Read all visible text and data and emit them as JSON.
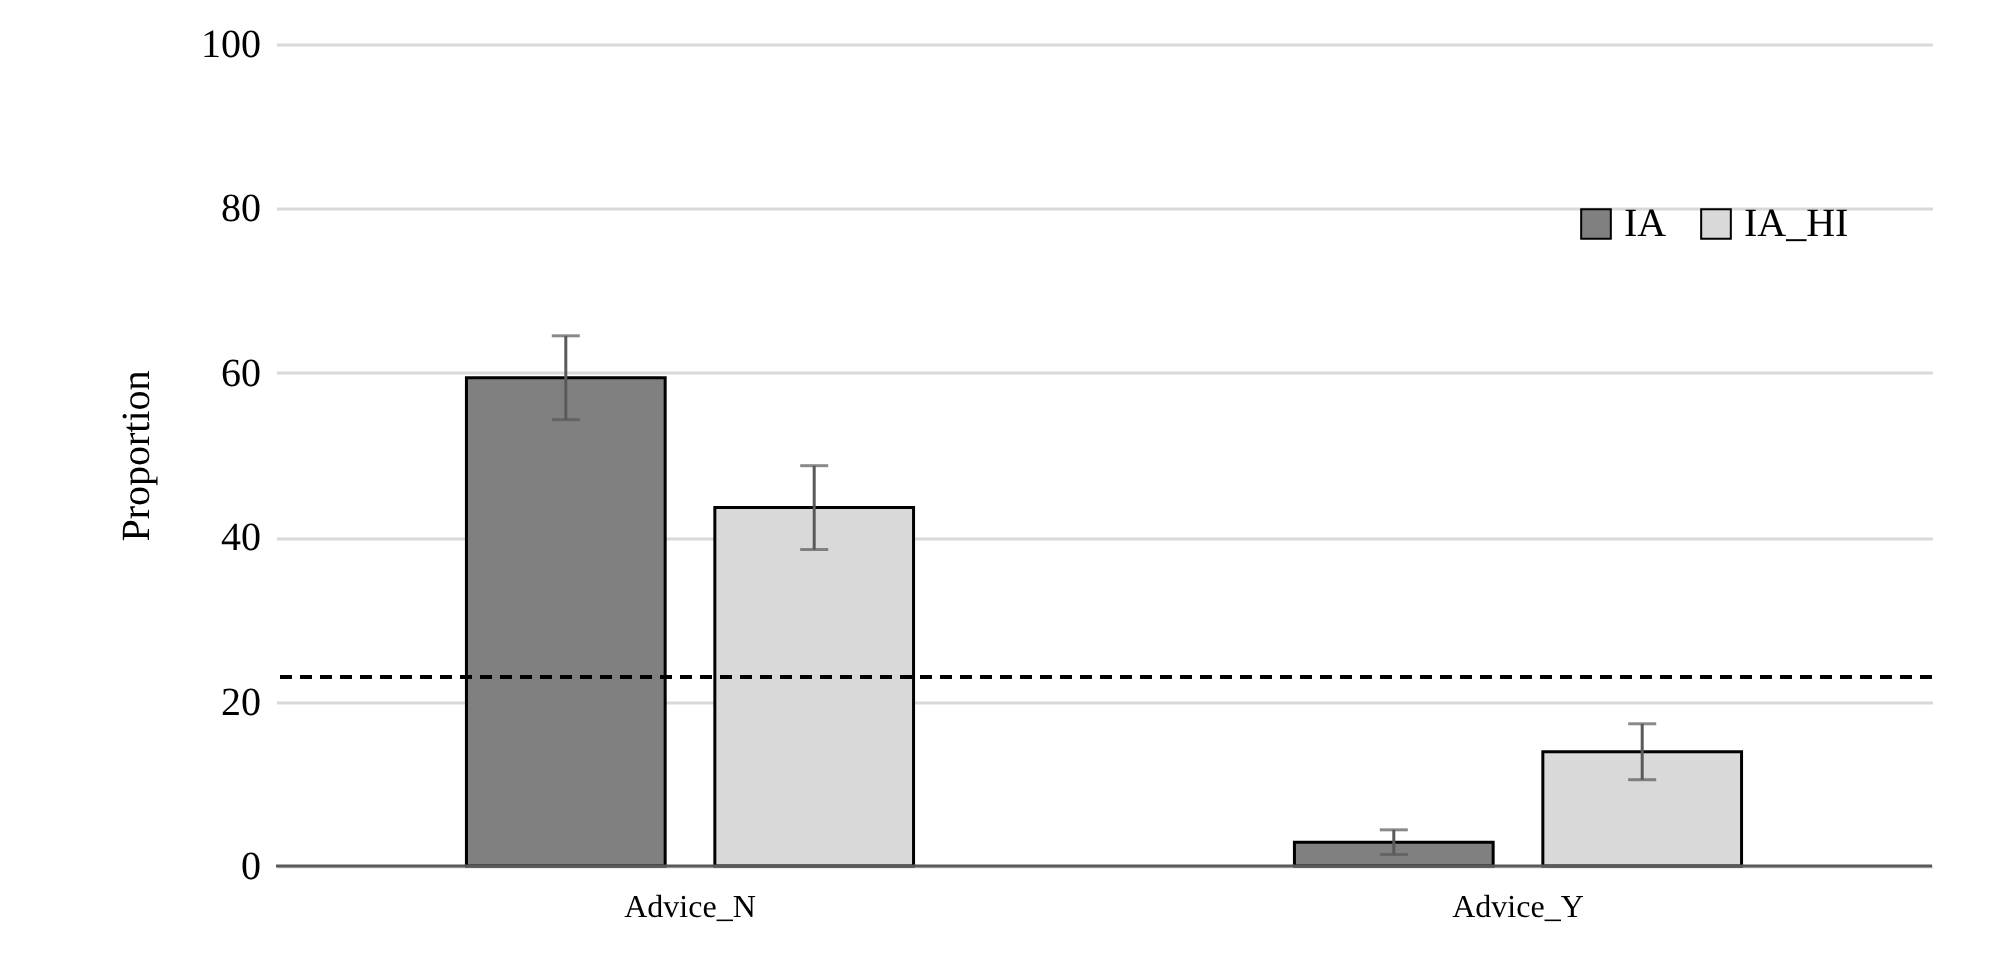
{
  "chart_data": {
    "type": "bar",
    "ylabel": "Proportion",
    "categories": [
      "Advice_N",
      "Advice_Y"
    ],
    "series": [
      {
        "name": "IA",
        "color": "#808080",
        "values": [
          59.4,
          2.9
        ],
        "errors": [
          5.1,
          1.5
        ]
      },
      {
        "name": "IA_HI",
        "color": "#d9d9d9",
        "values": [
          43.6,
          13.9
        ],
        "errors": [
          5.1,
          3.4
        ]
      }
    ],
    "ylim": [
      0,
      100
    ],
    "yticks": [
      0,
      20,
      40,
      60,
      80,
      100
    ],
    "grid": "y",
    "legend": "top right",
    "ref_lines": [
      {
        "axis": "y",
        "value": 23,
        "line_style": "dashed",
        "color": "#000000"
      }
    ]
  }
}
